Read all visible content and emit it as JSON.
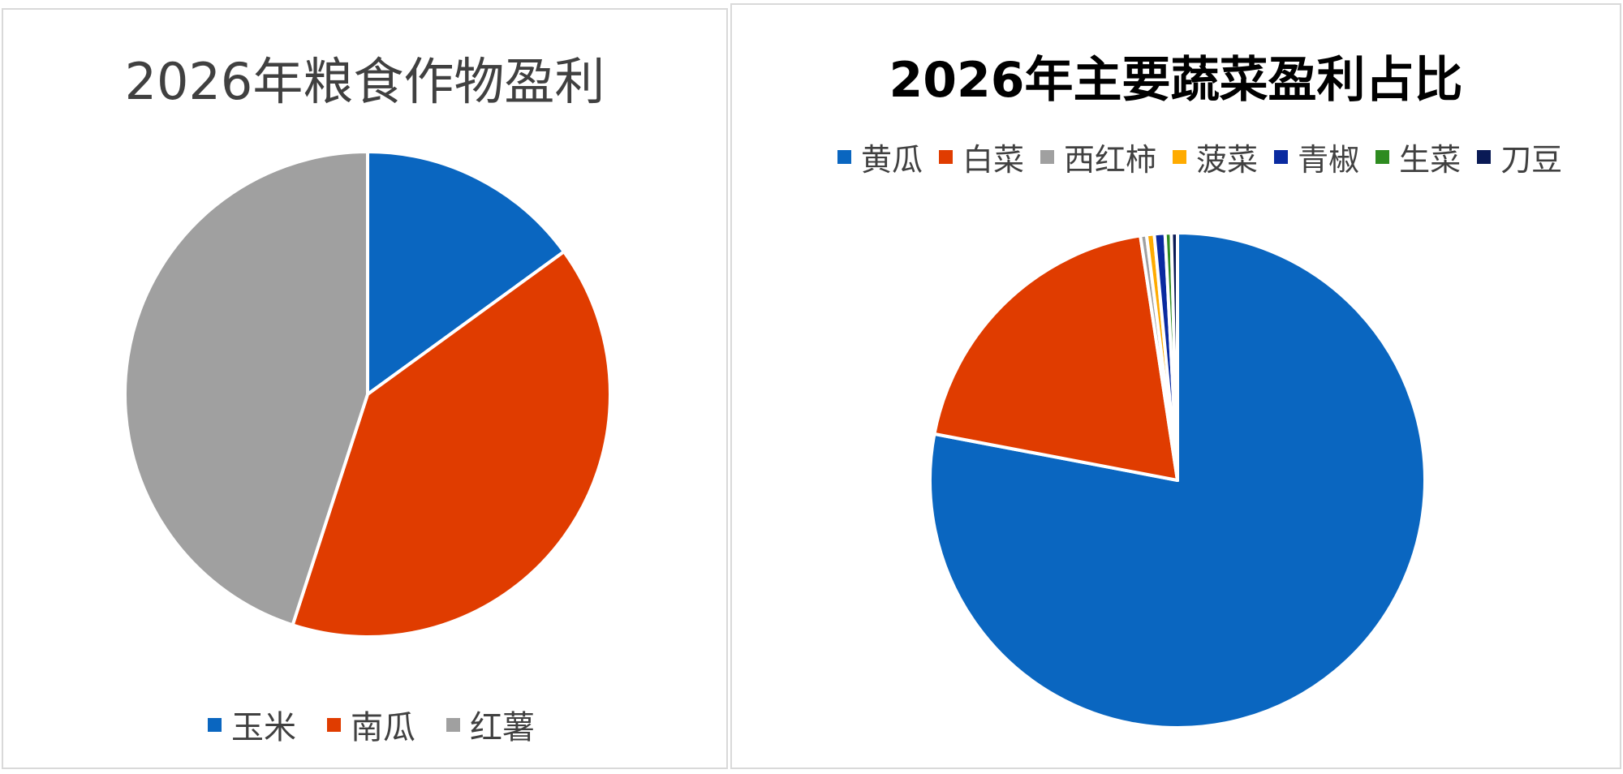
{
  "chart_data": [
    {
      "type": "pie",
      "title": "2026年粮食作物盈利",
      "categories": [
        "玉米",
        "南瓜",
        "红薯"
      ],
      "values": [
        15,
        40,
        45
      ],
      "colors": [
        "#0a66c0",
        "#e03c00",
        "#a0a0a0"
      ],
      "legend": "bottom"
    },
    {
      "type": "pie",
      "title": "2026年主要蔬菜盈利占比",
      "categories": [
        "黄瓜",
        "白菜",
        "西红柿",
        "菠菜",
        "青椒",
        "生菜",
        "刀豆"
      ],
      "values": [
        78,
        19.6,
        0.4,
        0.5,
        0.7,
        0.4,
        0.4
      ],
      "colors": [
        "#0a66c0",
        "#e03c00",
        "#a0a0a0",
        "#ffab00",
        "#0a2aa0",
        "#2e8b20",
        "#0a1a55"
      ],
      "legend": "top"
    }
  ]
}
